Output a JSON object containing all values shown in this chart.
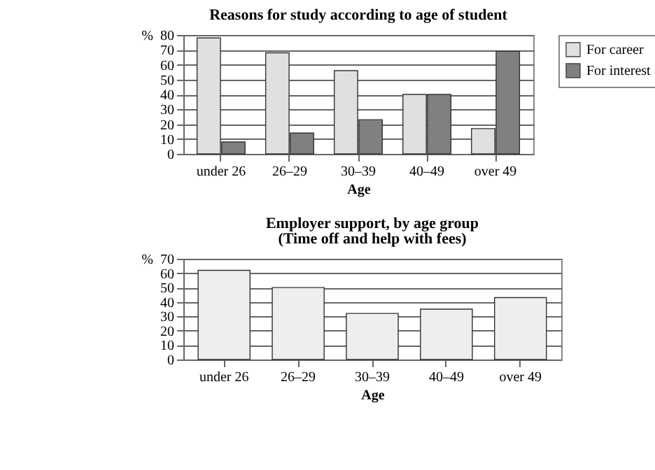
{
  "chart_data": [
    {
      "type": "bar",
      "title": "Reasons for study according to age of student",
      "xlabel": "Age",
      "ylabel": "%",
      "categories": [
        "under 26",
        "26–29",
        "30–39",
        "40–49",
        "over 49"
      ],
      "series": [
        {
          "name": "For career",
          "color": "#e0e0e0",
          "values": [
            78,
            68,
            56,
            40,
            17
          ]
        },
        {
          "name": "For interest",
          "color": "#808080",
          "values": [
            8,
            14,
            23,
            40,
            69
          ]
        }
      ],
      "ylim": [
        0,
        80
      ],
      "yticks": [
        0,
        10,
        20,
        30,
        40,
        50,
        60,
        70,
        80
      ],
      "grid": "y",
      "legend": "right"
    },
    {
      "type": "bar",
      "title": "Employer support, by age group",
      "subtitle": "(Time off and help with fees)",
      "xlabel": "Age",
      "ylabel": "%",
      "categories": [
        "under 26",
        "26–29",
        "30–39",
        "40–49",
        "over 49"
      ],
      "series": [
        {
          "color": "#eeeeee",
          "values": [
            62,
            50,
            32,
            35,
            43
          ]
        }
      ],
      "ylim": [
        0,
        70
      ],
      "yticks": [
        0,
        10,
        20,
        30,
        40,
        50,
        60,
        70
      ],
      "grid": "y"
    }
  ]
}
